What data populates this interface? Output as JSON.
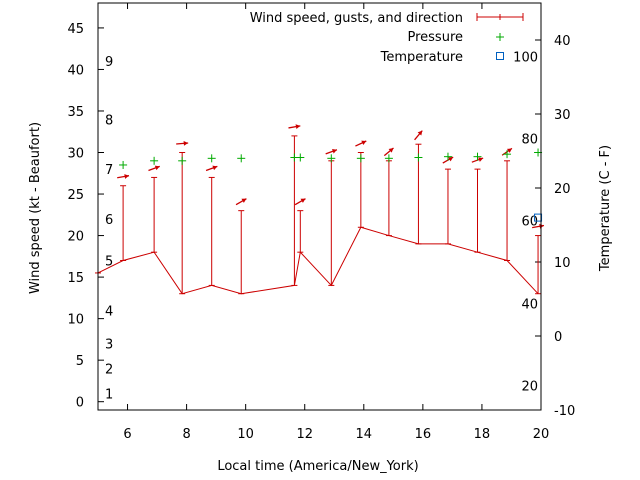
{
  "chart_data": {
    "type": "line",
    "xlabel": "Local time (America/New_York)",
    "ylabel_left": "Wind speed (kt - Beaufort)",
    "ylabel_right": "Temperature (C - F)",
    "xlim": [
      5,
      20
    ],
    "ylim_left": [
      -1,
      48
    ],
    "ylim_right": [
      -10,
      45
    ],
    "x_ticks": [
      6,
      8,
      10,
      12,
      14,
      16,
      18,
      20
    ],
    "y_ticks_left": [
      0,
      5,
      10,
      15,
      20,
      25,
      30,
      35,
      40,
      45
    ],
    "y_ticks_right": [
      -10,
      0,
      10,
      20,
      30,
      40
    ],
    "beaufort_labels": [
      {
        "label": "1",
        "kt": 1
      },
      {
        "label": "2",
        "kt": 4
      },
      {
        "label": "3",
        "kt": 7
      },
      {
        "label": "4",
        "kt": 11
      },
      {
        "label": "5",
        "kt": 17
      },
      {
        "label": "6",
        "kt": 22
      },
      {
        "label": "7",
        "kt": 28
      },
      {
        "label": "8",
        "kt": 34
      },
      {
        "label": "9",
        "kt": 41
      }
    ],
    "fahrenheit_labels": [
      {
        "label": "20",
        "c": -6.7
      },
      {
        "label": "40",
        "c": 4.4
      },
      {
        "label": "60",
        "c": 15.6
      },
      {
        "label": "80",
        "c": 26.7
      },
      {
        "label": "100",
        "c": 37.8
      }
    ],
    "legend": {
      "position": "top-right",
      "wind": "Wind speed, gusts, and direction",
      "pressure": "Pressure",
      "temperature": "Temperature"
    },
    "series": [
      {
        "name": "Wind speed, gusts, and direction",
        "color": "#cc0000",
        "x": [
          5,
          5.85,
          6.9,
          7.85,
          8.85,
          9.85,
          11.65,
          11.85,
          12.9,
          13.9,
          14.85,
          15.85,
          16.85,
          17.85,
          18.85,
          19.9
        ],
        "speed": [
          15.5,
          17,
          18,
          13,
          14,
          13,
          14,
          18,
          14,
          21,
          20,
          19,
          19,
          18,
          17,
          13
        ],
        "gust": [
          null,
          26,
          27,
          30,
          27,
          23,
          32,
          23,
          29,
          30,
          29,
          31,
          28,
          28,
          29,
          20
        ],
        "direction_deg": [
          null,
          80,
          70,
          85,
          70,
          60,
          80,
          60,
          70,
          65,
          50,
          40,
          60,
          70,
          55,
          80
        ]
      },
      {
        "name": "Pressure",
        "color": "#00aa00",
        "x": [
          5.85,
          6.9,
          7.85,
          8.85,
          9.85,
          11.65,
          11.85,
          12.9,
          13.9,
          14.85,
          15.85,
          16.85,
          17.85,
          18.85,
          19.9
        ],
        "y_kt_axis": [
          28.5,
          29,
          29,
          29.3,
          29.3,
          29.4,
          29.4,
          29.3,
          29.3,
          29.3,
          29.4,
          29.5,
          29.5,
          29.8,
          30
        ]
      },
      {
        "name": "Temperature",
        "color": "#0060c0",
        "x": [
          19.9
        ],
        "y_celsius": [
          16
        ]
      }
    ]
  }
}
